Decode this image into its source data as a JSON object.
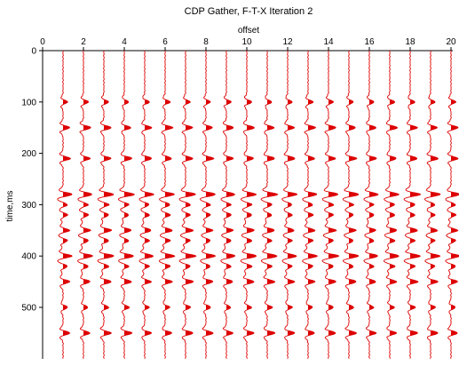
{
  "chart_data": {
    "type": "line",
    "title": "CDP Gather, F-T-X Iteration 2",
    "xlabel": "offset",
    "ylabel": "time,ms",
    "xlim": [
      0,
      21
    ],
    "ylim": [
      0,
      600
    ],
    "y_inverted": true,
    "x_axis_position": "top",
    "xticks": [
      0,
      2,
      4,
      6,
      8,
      10,
      12,
      14,
      16,
      18,
      20
    ],
    "yticks": [
      0,
      100,
      200,
      300,
      400,
      500
    ],
    "traces": [
      1,
      2,
      3,
      4,
      5,
      6,
      7,
      8,
      9,
      10,
      11,
      12,
      13,
      14,
      15,
      16,
      17,
      18,
      19,
      20
    ],
    "events_ms": [
      100,
      150,
      210,
      280,
      300,
      320,
      350,
      370,
      400,
      420,
      450,
      500,
      550
    ],
    "trace_color": "#dd0000",
    "fill": "positive-wiggle"
  }
}
